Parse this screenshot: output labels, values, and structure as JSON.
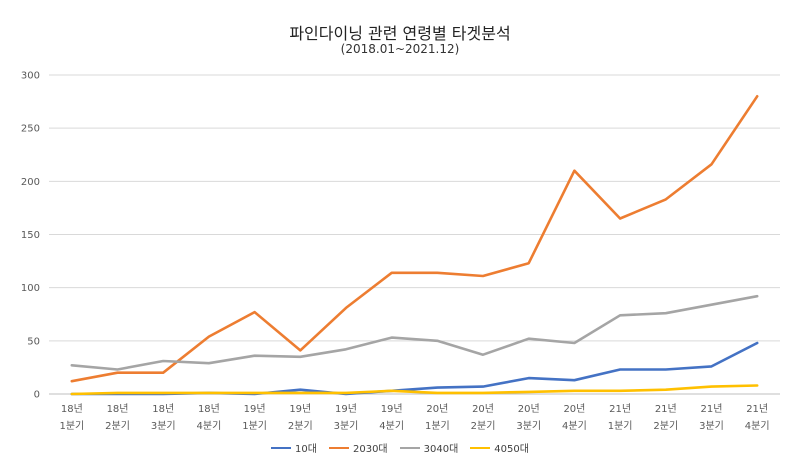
{
  "chart_data": {
    "type": "line",
    "title": "파인다이닝 관련 연령별 타겟분석",
    "subtitle": "(2018.01~2021.12)",
    "xlabel": "",
    "ylabel": "",
    "ylim": [
      0,
      300
    ],
    "yticks": [
      "0",
      "50",
      "100",
      "150",
      "200",
      "250",
      "300"
    ],
    "grid": true,
    "legend_position": "bottom",
    "categories": [
      {
        "year": "18년",
        "quarter": "1분기"
      },
      {
        "year": "18년",
        "quarter": "2분기"
      },
      {
        "year": "18년",
        "quarter": "3분기"
      },
      {
        "year": "18년",
        "quarter": "4분기"
      },
      {
        "year": "19년",
        "quarter": "1분기"
      },
      {
        "year": "19년",
        "quarter": "2분기"
      },
      {
        "year": "19년",
        "quarter": "3분기"
      },
      {
        "year": "19년",
        "quarter": "4분기"
      },
      {
        "year": "20년",
        "quarter": "1분기"
      },
      {
        "year": "20년",
        "quarter": "2분기"
      },
      {
        "year": "20년",
        "quarter": "3분기"
      },
      {
        "year": "20년",
        "quarter": "4분기"
      },
      {
        "year": "21년",
        "quarter": "1분기"
      },
      {
        "year": "21년",
        "quarter": "2분기"
      },
      {
        "year": "21년",
        "quarter": "3분기"
      },
      {
        "year": "21년",
        "quarter": "4분기"
      }
    ],
    "series": [
      {
        "name": "10대",
        "color": "#4472C4",
        "values": [
          0,
          0,
          0,
          1,
          0,
          4,
          0,
          3,
          6,
          7,
          15,
          13,
          23,
          23,
          26,
          48
        ]
      },
      {
        "name": "2030대",
        "color": "#ED7D31",
        "values": [
          12,
          20,
          20,
          54,
          77,
          41,
          81,
          114,
          114,
          111,
          123,
          210,
          165,
          183,
          216,
          280
        ]
      },
      {
        "name": "3040대",
        "color": "#A5A5A5",
        "values": [
          27,
          23,
          31,
          29,
          36,
          35,
          42,
          53,
          50,
          37,
          52,
          48,
          74,
          76,
          84,
          92
        ]
      },
      {
        "name": "4050대",
        "color": "#FFC000",
        "values": [
          0,
          1,
          1,
          1,
          1,
          1,
          1,
          3,
          1,
          1,
          2,
          3,
          3,
          4,
          7,
          8
        ]
      }
    ]
  }
}
